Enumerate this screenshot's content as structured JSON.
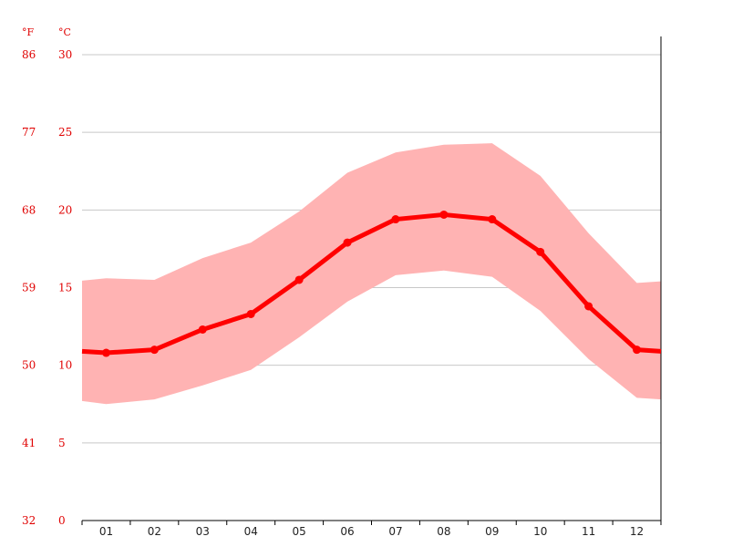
{
  "chart_data": {
    "type": "line",
    "categories": [
      "01",
      "02",
      "03",
      "04",
      "05",
      "06",
      "07",
      "08",
      "09",
      "10",
      "11",
      "12"
    ],
    "series": [
      {
        "values": [
          10.8,
          11.0,
          12.3,
          13.3,
          15.5,
          17.9,
          19.4,
          19.7,
          19.4,
          17.3,
          13.8,
          11.0
        ]
      }
    ],
    "band": {
      "upper": [
        15.6,
        15.5,
        16.9,
        17.9,
        19.9,
        22.4,
        23.7,
        24.2,
        24.3,
        22.2,
        18.5,
        15.3
      ],
      "lower": [
        7.5,
        7.8,
        8.7,
        9.7,
        11.8,
        14.1,
        15.8,
        16.1,
        15.7,
        13.5,
        10.4,
        7.9
      ]
    },
    "unit_left": "°F",
    "unit_right": "°C",
    "y_ticks_c": [
      "0",
      "5",
      "10",
      "15",
      "20",
      "25",
      "30"
    ],
    "y_ticks_f": [
      "32",
      "41",
      "50",
      "59",
      "68",
      "77",
      "86"
    ],
    "ylim": [
      0,
      30
    ],
    "grid": true,
    "colors": {
      "line": "#ff0000",
      "band": "#ffb3b3",
      "axis_text": "#e00000",
      "grid": "#c8c8c8"
    }
  }
}
